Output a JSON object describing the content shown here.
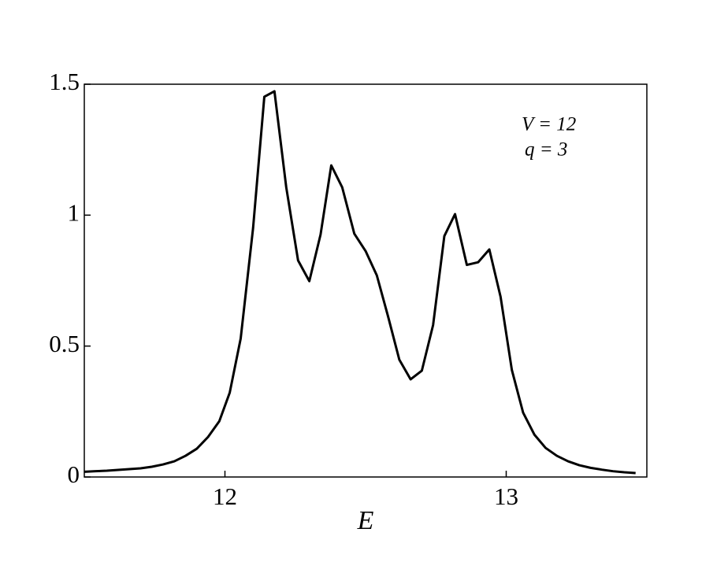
{
  "chart_data": {
    "type": "line",
    "xlabel": "E",
    "annotations": [
      "V = 12",
      "q = 3"
    ],
    "x": [
      11.5,
      11.54,
      11.58,
      11.62,
      11.66,
      11.7,
      11.74,
      11.78,
      11.82,
      11.86,
      11.9,
      11.94,
      11.98,
      12.017,
      12.056,
      12.1,
      12.14,
      12.176,
      12.218,
      12.26,
      12.3,
      12.34,
      12.378,
      12.417,
      12.46,
      12.5,
      12.54,
      12.58,
      12.62,
      12.66,
      12.7,
      12.74,
      12.78,
      12.818,
      12.86,
      12.9,
      12.94,
      12.98,
      13.02,
      13.06,
      13.1,
      13.14,
      13.18,
      13.22,
      13.26,
      13.3,
      13.34,
      13.38,
      13.42,
      13.46
    ],
    "series": [
      {
        "color": "#000000",
        "values": [
          0.02,
          0.022,
          0.024,
          0.027,
          0.03,
          0.033,
          0.039,
          0.048,
          0.06,
          0.081,
          0.108,
          0.153,
          0.213,
          0.322,
          0.529,
          0.95,
          1.452,
          1.473,
          1.106,
          0.827,
          0.748,
          0.926,
          1.19,
          1.106,
          0.929,
          0.863,
          0.77,
          0.613,
          0.448,
          0.373,
          0.406,
          0.58,
          0.92,
          1.004,
          0.81,
          0.82,
          0.869,
          0.688,
          0.409,
          0.246,
          0.162,
          0.111,
          0.081,
          0.06,
          0.045,
          0.035,
          0.028,
          0.022,
          0.018,
          0.015
        ]
      }
    ],
    "xlim": [
      11.5,
      13.5
    ],
    "ylim": [
      0,
      1.5
    ],
    "xticks": [
      12,
      13
    ],
    "yticks": [
      0,
      0.5,
      1,
      1.5
    ]
  }
}
